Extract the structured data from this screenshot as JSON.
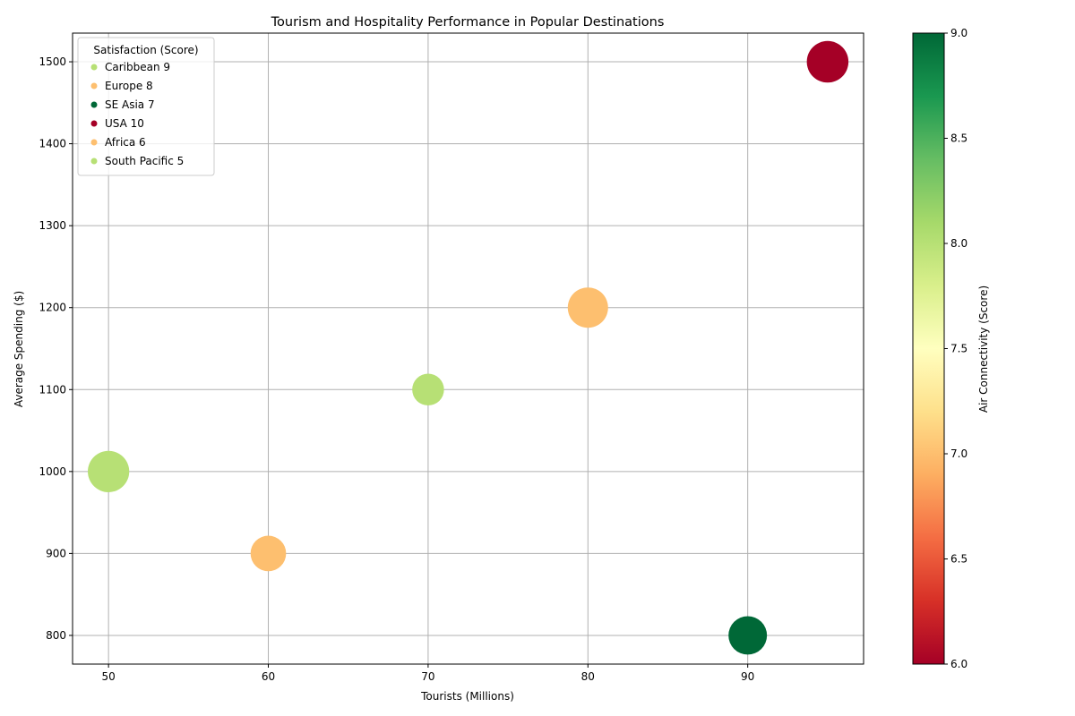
{
  "chart_data": {
    "type": "scatter",
    "title": "Tourism and Hospitality Performance in Popular Destinations",
    "xlabel": "Tourists (Millions)",
    "ylabel": "Average Spending ($)",
    "xlim": [
      47.75,
      97.25
    ],
    "ylim": [
      765,
      1535
    ],
    "x_ticks": [
      50,
      60,
      70,
      80,
      90
    ],
    "y_ticks": [
      800,
      900,
      1000,
      1100,
      1200,
      1300,
      1400,
      1500
    ],
    "grid": true,
    "legend": {
      "title": "Satisfaction (Score)",
      "placement": "upper-left",
      "entries": [
        {
          "label": "Caribbean 9",
          "color": "#b7e075"
        },
        {
          "label": "Europe 8",
          "color": "#fdbf6f"
        },
        {
          "label": "SE Asia 7",
          "color": "#006837"
        },
        {
          "label": "USA 10",
          "color": "#a50026"
        },
        {
          "label": "Africa 6",
          "color": "#fdbf6f"
        },
        {
          "label": "South Pacific 5",
          "color": "#b7e075"
        }
      ]
    },
    "points": [
      {
        "x": 50,
        "y": 1000,
        "size": 950,
        "color": "#b7e075"
      },
      {
        "x": 60,
        "y": 900,
        "size": 700,
        "color": "#fdbf6f"
      },
      {
        "x": 70,
        "y": 1100,
        "size": 560,
        "color": "#b7e075"
      },
      {
        "x": 80,
        "y": 1200,
        "size": 900,
        "color": "#fdbf6f"
      },
      {
        "x": 90,
        "y": 800,
        "size": 820,
        "color": "#006837"
      },
      {
        "x": 95,
        "y": 1500,
        "size": 960,
        "color": "#a50026"
      }
    ],
    "colorbar": {
      "label": "Air Connectivity (Score)",
      "min": 6.0,
      "max": 9.0,
      "ticks": [
        "6.0",
        "6.5",
        "7.0",
        "7.5",
        "8.0",
        "8.5",
        "9.0"
      ],
      "colormap": [
        "#a50026",
        "#d73027",
        "#f46d43",
        "#fdae61",
        "#fee08b",
        "#ffffbf",
        "#d9ef8b",
        "#a6d96a",
        "#66bd63",
        "#1a9850",
        "#006837"
      ]
    }
  }
}
